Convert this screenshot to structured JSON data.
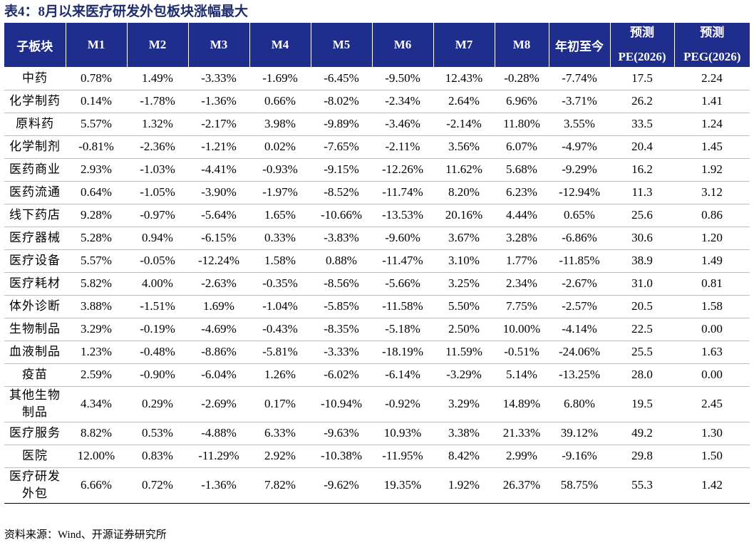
{
  "title": "表4：8月以来医疗研发外包板块涨幅最大",
  "headers": [
    "子板块",
    "M1",
    "M2",
    "M3",
    "M4",
    "M5",
    "M6",
    "M7",
    "M8",
    "年初至今"
  ],
  "pe_header": {
    "line1": "预测",
    "line2": "PE(2026)"
  },
  "peg_header": {
    "line1": "预测",
    "line2": "PEG(2026)"
  },
  "rows": [
    {
      "name": "中药",
      "cells": [
        "0.78%",
        "1.49%",
        "-3.33%",
        "-1.69%",
        "-6.45%",
        "-9.50%",
        "12.43%",
        "-0.28%",
        "-7.74%",
        "17.5",
        "2.24"
      ]
    },
    {
      "name": "化学制药",
      "cells": [
        "0.14%",
        "-1.78%",
        "-1.36%",
        "0.66%",
        "-8.02%",
        "-2.34%",
        "2.64%",
        "6.96%",
        "-3.71%",
        "26.2",
        "1.41"
      ]
    },
    {
      "name": "原料药",
      "cells": [
        "5.57%",
        "1.32%",
        "-2.17%",
        "3.98%",
        "-9.89%",
        "-3.46%",
        "-2.14%",
        "11.80%",
        "3.55%",
        "33.5",
        "1.24"
      ]
    },
    {
      "name": "化学制剂",
      "cells": [
        "-0.81%",
        "-2.36%",
        "-1.21%",
        "0.02%",
        "-7.65%",
        "-2.11%",
        "3.56%",
        "6.07%",
        "-4.97%",
        "20.4",
        "1.45"
      ]
    },
    {
      "name": "医药商业",
      "cells": [
        "2.93%",
        "-1.03%",
        "-4.41%",
        "-0.93%",
        "-9.15%",
        "-12.26%",
        "11.62%",
        "5.68%",
        "-9.29%",
        "16.2",
        "1.92"
      ]
    },
    {
      "name": "医药流通",
      "cells": [
        "0.64%",
        "-1.05%",
        "-3.90%",
        "-1.97%",
        "-8.52%",
        "-11.74%",
        "8.20%",
        "6.23%",
        "-12.94%",
        "11.3",
        "3.12"
      ]
    },
    {
      "name": "线下药店",
      "cells": [
        "9.28%",
        "-0.97%",
        "-5.64%",
        "1.65%",
        "-10.66%",
        "-13.53%",
        "20.16%",
        "4.44%",
        "0.65%",
        "25.6",
        "0.86"
      ]
    },
    {
      "name": "医疗器械",
      "cells": [
        "5.28%",
        "0.94%",
        "-6.15%",
        "0.33%",
        "-3.83%",
        "-9.60%",
        "3.67%",
        "3.28%",
        "-6.86%",
        "30.6",
        "1.20"
      ]
    },
    {
      "name": "医疗设备",
      "cells": [
        "5.57%",
        "-0.05%",
        "-12.24%",
        "1.58%",
        "0.88%",
        "-11.47%",
        "3.10%",
        "1.77%",
        "-11.85%",
        "38.9",
        "1.49"
      ]
    },
    {
      "name": "医疗耗材",
      "cells": [
        "5.82%",
        "4.00%",
        "-2.63%",
        "-0.35%",
        "-8.56%",
        "-5.66%",
        "3.25%",
        "2.34%",
        "-2.67%",
        "31.0",
        "0.81"
      ]
    },
    {
      "name": "体外诊断",
      "cells": [
        "3.88%",
        "-1.51%",
        "1.69%",
        "-1.04%",
        "-5.85%",
        "-11.58%",
        "5.50%",
        "7.75%",
        "-2.57%",
        "20.5",
        "1.58"
      ]
    },
    {
      "name": "生物制品",
      "cells": [
        "3.29%",
        "-0.19%",
        "-4.69%",
        "-0.43%",
        "-8.35%",
        "-5.18%",
        "2.50%",
        "10.00%",
        "-4.14%",
        "22.5",
        "0.00"
      ]
    },
    {
      "name": "血液制品",
      "cells": [
        "1.23%",
        "-0.48%",
        "-8.86%",
        "-5.81%",
        "-3.33%",
        "-18.19%",
        "11.59%",
        "-0.51%",
        "-24.06%",
        "25.5",
        "1.63"
      ]
    },
    {
      "name": "疫苗",
      "cells": [
        "2.59%",
        "-0.90%",
        "-6.04%",
        "1.26%",
        "-6.02%",
        "-6.14%",
        "-3.29%",
        "5.14%",
        "-13.25%",
        "28.0",
        "0.00"
      ]
    },
    {
      "name": "其他生物制品",
      "name_line1": "其他生物",
      "name_line2": "制品",
      "cells": [
        "4.34%",
        "0.29%",
        "-2.69%",
        "0.17%",
        "-10.94%",
        "-0.92%",
        "3.29%",
        "14.89%",
        "6.80%",
        "19.5",
        "2.45"
      ]
    },
    {
      "name": "医疗服务",
      "cells": [
        "8.82%",
        "0.53%",
        "-4.88%",
        "6.33%",
        "-9.63%",
        "10.93%",
        "3.38%",
        "21.33%",
        "39.12%",
        "49.2",
        "1.30"
      ]
    },
    {
      "name": "医院",
      "cells": [
        "12.00%",
        "0.83%",
        "-11.29%",
        "2.92%",
        "-10.38%",
        "-11.95%",
        "8.42%",
        "2.99%",
        "-9.16%",
        "29.8",
        "1.50"
      ]
    },
    {
      "name": "医疗研发外包",
      "name_line1": "医疗研发",
      "name_line2": "外包",
      "cells": [
        "6.66%",
        "0.72%",
        "-1.36%",
        "7.82%",
        "-9.62%",
        "19.35%",
        "1.92%",
        "26.37%",
        "58.75%",
        "55.3",
        "1.42"
      ]
    }
  ],
  "source": "资料来源：Wind、开源证券研究所"
}
